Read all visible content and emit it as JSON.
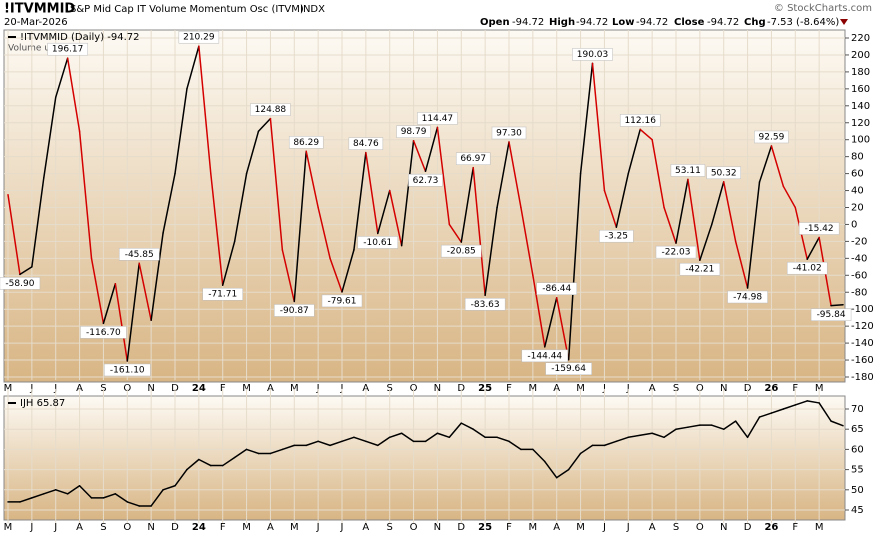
{
  "header": {
    "symbol": "!ITVMMID",
    "description": "S&P Mid Cap IT Volume Momentum Osc (ITVM)",
    "exchange": "INDX",
    "date": "20-Mar-2026",
    "open_label": "Open",
    "open": "-94.72",
    "high_label": "High",
    "high": "-94.72",
    "low_label": "Low",
    "low": "-94.72",
    "close_label": "Close",
    "close": "-94.72",
    "chg_label": "Chg",
    "chg": "-7.53 (-8.64%)",
    "copyright": "© StockCharts.com"
  },
  "chart_data": [
    {
      "type": "line",
      "volume_note": "Volume undef",
      "categories": [
        "M",
        null,
        "J",
        null,
        "J",
        null,
        "A",
        null,
        "S",
        null,
        "O",
        null,
        "N",
        null,
        "D",
        null,
        "24",
        null,
        "F",
        null,
        "M",
        null,
        "A",
        null,
        "M",
        null,
        "J",
        null,
        "J",
        null,
        "A",
        null,
        "S",
        null,
        "O",
        null,
        "N",
        null,
        "D",
        null,
        "25",
        null,
        "F",
        null,
        "M",
        null,
        "A",
        null,
        "M",
        null,
        "J",
        null,
        "J",
        null,
        "A",
        null,
        "S",
        null,
        "O",
        null,
        "N",
        null,
        "D",
        null,
        "26",
        null,
        "F",
        null,
        "M",
        null,
        null
      ],
      "series": [
        {
          "name": "!ITVMMID (Daily) -94.72",
          "color": "#000000",
          "falling_color": "#d40000",
          "values": [
            35,
            -58.9,
            -50,
            55,
            150,
            196.17,
            110,
            -40,
            -116.7,
            -70,
            -161.1,
            -45.85,
            -113,
            -10,
            60,
            160,
            210.29,
            60,
            -71.71,
            -20,
            60,
            110,
            124.88,
            -30,
            -90.87,
            86.29,
            20,
            -40,
            -79.61,
            -30,
            84.76,
            -10.61,
            40,
            -25,
            98.79,
            62.73,
            114.47,
            0,
            -20.85,
            66.97,
            -83.63,
            20,
            97.3,
            20,
            -60,
            -144.44,
            -86.44,
            -159.64,
            60,
            190.03,
            40,
            -3.25,
            60,
            112.16,
            100,
            20,
            -22.03,
            53.11,
            -42.21,
            0,
            50.32,
            -20,
            -74.98,
            50,
            92.59,
            45,
            20,
            -41.02,
            -15.42,
            -95.84,
            -94.72
          ],
          "value_labels": [
            null,
            "-58.90",
            null,
            null,
            null,
            "196.17",
            null,
            null,
            "-116.70",
            null,
            "-161.10",
            "-45.85",
            null,
            null,
            null,
            null,
            "210.29",
            null,
            "-71.71",
            null,
            null,
            null,
            "124.88",
            null,
            "-90.87",
            "86.29",
            null,
            null,
            "-79.61",
            null,
            "84.76",
            "-10.61",
            null,
            null,
            "98.79",
            "62.73",
            "114.47",
            null,
            "-20.85",
            "66.97",
            "-83.63",
            null,
            "97.30",
            null,
            null,
            "-144.44",
            "-86.44",
            "-159.64",
            null,
            "190.03",
            null,
            "-3.25",
            null,
            "112.16",
            null,
            null,
            "-22.03",
            "53.11",
            "-42.21",
            null,
            "50.32",
            null,
            "-74.98",
            null,
            "92.59",
            null,
            null,
            "-41.02",
            "-15.42",
            "-95.84",
            null
          ]
        }
      ],
      "ylim": [
        -180,
        220
      ],
      "yticks": [
        -180,
        -160,
        -140,
        -120,
        -100,
        -80,
        -60,
        -40,
        -20,
        0,
        20,
        40,
        60,
        80,
        100,
        120,
        140,
        160,
        180,
        200,
        220
      ],
      "grid": true
    },
    {
      "type": "line",
      "categories": [
        "M",
        null,
        "J",
        null,
        "J",
        null,
        "A",
        null,
        "S",
        null,
        "O",
        null,
        "N",
        null,
        "D",
        null,
        "24",
        null,
        "F",
        null,
        "M",
        null,
        "A",
        null,
        "M",
        null,
        "J",
        null,
        "J",
        null,
        "A",
        null,
        "S",
        null,
        "O",
        null,
        "N",
        null,
        "D",
        null,
        "25",
        null,
        "F",
        null,
        "M",
        null,
        "A",
        null,
        "M",
        null,
        "J",
        null,
        "J",
        null,
        "A",
        null,
        "S",
        null,
        "O",
        null,
        "N",
        null,
        "D",
        null,
        "26",
        null,
        "F",
        null,
        "M",
        null,
        null
      ],
      "series": [
        {
          "name": "IJH 65.87",
          "color": "#000000",
          "values": [
            47,
            47,
            48,
            49,
            50,
            49,
            51,
            48,
            48,
            49,
            47,
            46,
            46,
            50,
            51,
            55,
            57.5,
            56,
            56,
            58,
            60,
            59,
            59,
            60,
            61,
            61,
            62,
            61,
            62,
            63,
            62,
            61,
            63,
            64,
            62,
            62,
            64,
            63,
            66.5,
            65,
            63,
            63,
            62,
            60,
            60,
            57,
            53,
            55,
            59,
            61,
            61,
            62,
            63,
            63.5,
            64,
            63,
            65,
            65.5,
            66,
            66,
            65,
            67,
            63,
            68,
            69,
            70,
            71,
            72,
            71.5,
            67,
            65.87
          ]
        }
      ],
      "ylim": [
        42.5,
        73
      ],
      "yticks": [
        45,
        50,
        55,
        60,
        65,
        70
      ],
      "grid": true
    }
  ]
}
